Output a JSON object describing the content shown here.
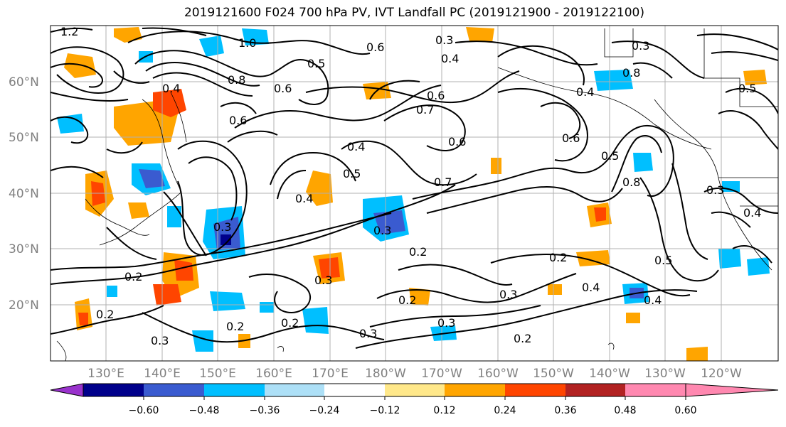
{
  "title": "2019121600 F024 700 hPa PV, IVT Landfall PC (2019121900 - 2019122100)",
  "lat_labels": [
    "60°N",
    "50°N",
    "40°N",
    "30°N",
    "20°N"
  ],
  "lon_labels": [
    "130°E",
    "140°E",
    "150°E",
    "160°E",
    "170°E",
    "180°W",
    "170°W",
    "160°W",
    "150°W",
    "140°W",
    "130°W",
    "120°W"
  ],
  "colorbar": {
    "tick_labels": [
      "−0.60",
      "−0.48",
      "−0.36",
      "−0.24",
      "−0.12",
      "0.12",
      "0.24",
      "0.36",
      "0.48",
      "0.60"
    ],
    "colors": [
      "#9932CC",
      "#00008B",
      "#3A5BD0",
      "#00BFFF",
      "#ADE0F7",
      "#FFFFFF",
      "#FFE88A",
      "#FFA500",
      "#FF4500",
      "#B22222",
      "#FF88B0"
    ]
  },
  "contour_labels": [
    "1.2",
    "1.0",
    "0.6",
    "0.3",
    "0.4",
    "0.5",
    "0.6",
    "0.7",
    "0.6",
    "0.4",
    "0.5",
    "0.4",
    "0.7",
    "0.6",
    "0.5",
    "0.8",
    "0.3",
    "0.2",
    "0.3",
    "0.2",
    "0.2",
    "0.3",
    "0.2",
    "0.2",
    "0.3",
    "0.2",
    "0.3",
    "0.2",
    "0.3",
    "0.4",
    "0.5",
    "0.4",
    "0.3",
    "0.8",
    "0.6",
    "0.4",
    "0.3",
    "0.4",
    "0.4",
    "0.2",
    "0.3",
    "0.6",
    "0.5",
    "0.8"
  ]
}
